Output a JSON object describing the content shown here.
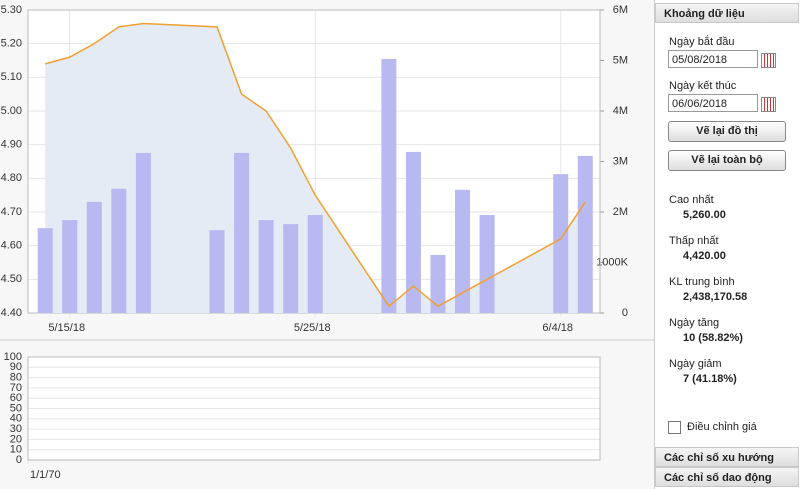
{
  "chart_data": [
    {
      "type": "stock",
      "x": [
        14,
        15,
        16,
        17,
        18,
        21,
        22,
        23,
        24,
        25,
        28,
        29,
        30,
        31,
        32,
        35,
        36
      ],
      "xlim": [
        13.3,
        36.6
      ],
      "xticks": [
        {
          "value": 15,
          "label": "5/15/18"
        },
        {
          "value": 25,
          "label": "5/25/18"
        },
        {
          "value": 35,
          "label": "6/4/18"
        }
      ],
      "ylim": [
        4.4,
        5.3
      ],
      "yticks": [
        {
          "value": 4.4,
          "label": "4.40"
        },
        {
          "value": 4.5,
          "label": "4.50"
        },
        {
          "value": 4.6,
          "label": "4.60"
        },
        {
          "value": 4.7,
          "label": "4.70"
        },
        {
          "value": 4.8,
          "label": "4.80"
        },
        {
          "value": 4.9,
          "label": "4.90"
        },
        {
          "value": 5.0,
          "label": "5.00"
        },
        {
          "value": 5.1,
          "label": "5.10"
        },
        {
          "value": 5.2,
          "label": "5.20"
        },
        {
          "value": 5.3,
          "label": "5.30"
        }
      ],
      "y2lim": [
        0,
        6000000
      ],
      "y2ticks": [
        0,
        {
          "value": 1000000,
          "label": "1000K"
        },
        {
          "value": 2000000,
          "label": "2M"
        },
        {
          "value": 3000000,
          "label": "3M"
        },
        {
          "value": 4000000,
          "label": "4M"
        },
        {
          "value": 5000000,
          "label": "5M"
        },
        {
          "value": 6000000,
          "label": "6M"
        }
      ],
      "series": [
        {
          "color": "#b9b9f2",
          "axis": "y2",
          "values": [
            1680000,
            1840000,
            2200000,
            2460000,
            3170000,
            1640000,
            3170000,
            1840000,
            1760000,
            1940000,
            5030000,
            3190000,
            1150000,
            2440000,
            1940000,
            2750000,
            3110000
          ]
        },
        {
          "color": "#f0a030",
          "area_color": "#e4ebf5",
          "axis": "y",
          "values": [
            5.14,
            5.16,
            5.2,
            5.25,
            5.26,
            5.25,
            5.05,
            5.0,
            4.89,
            4.75,
            4.42,
            4.48,
            4.42,
            4.46,
            4.5,
            4.62,
            4.73
          ]
        }
      ]
    },
    {
      "type": "line",
      "xlim": [
        0,
        1
      ],
      "xticks": [
        {
          "value": 0,
          "label": "1/1/70"
        }
      ],
      "ylim": [
        0,
        100
      ],
      "yticks": [
        0,
        10,
        20,
        30,
        40,
        50,
        60,
        70,
        80,
        90,
        100
      ]
    }
  ],
  "panel": {
    "header": "Khoảng dữ liệu",
    "start_label": "Ngày bắt đầu",
    "start_value": "05/08/2018",
    "end_label": "Ngày kết thúc",
    "end_value": "06/06/2018",
    "redraw": "Vẽ lại đồ thị",
    "redraw_all": "Vẽ lại toàn bộ",
    "stats": [
      {
        "label": "Cao nhất",
        "value": "5,260.00"
      },
      {
        "label": "Thấp nhất",
        "value": "4,420.00"
      },
      {
        "label": "KL trung bình",
        "value": "2,438,170.58"
      },
      {
        "label": "Ngày tăng",
        "value": "10 (58.82%)"
      },
      {
        "label": "Ngày giảm",
        "value": "7 (41.18%)"
      }
    ],
    "checkbox": "Điều chỉnh giá",
    "sections": [
      "Các chỉ số xu hướng",
      "Các chỉ số dao động"
    ]
  }
}
